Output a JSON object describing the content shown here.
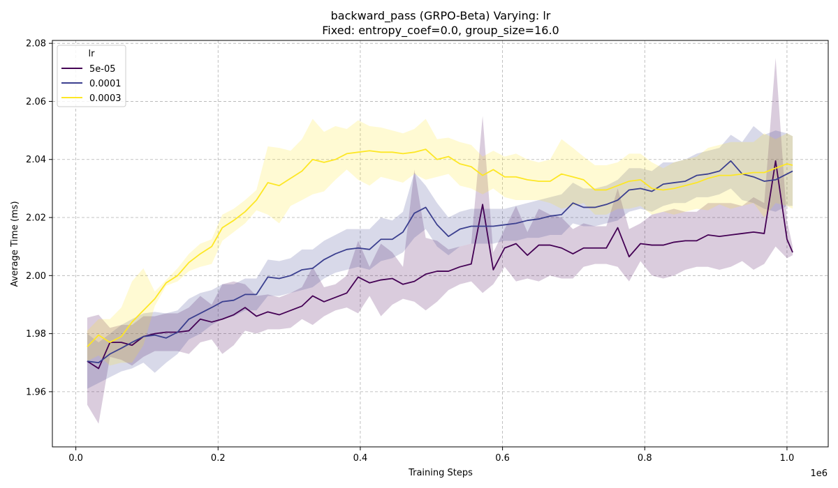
{
  "chart_data": {
    "type": "line",
    "title": "backward_pass (GRPO-Beta) Varying: lr",
    "subtitle": "Fixed: entropy_coef=0.0, group_size=16.0",
    "xlabel": "Training Steps",
    "ylabel": "Average Time (ms)",
    "x_offset_label": "1e6",
    "xlim": [
      -0.033,
      1.058
    ],
    "ylim": [
      1.941,
      2.081
    ],
    "xticks": [
      0.0,
      0.2,
      0.4,
      0.6,
      0.8,
      1.0
    ],
    "xtick_labels": [
      "0.0",
      "0.2",
      "0.4",
      "0.6",
      "0.8",
      "1.0"
    ],
    "yticks": [
      1.96,
      1.98,
      2.0,
      2.02,
      2.04,
      2.06,
      2.08
    ],
    "ytick_labels": [
      "1.96",
      "1.98",
      "2.00",
      "2.02",
      "2.04",
      "2.06",
      "2.08"
    ],
    "grid": true,
    "legend": {
      "title": "lr",
      "placement": "top-left"
    },
    "x": [
      0.016,
      0.032,
      0.048,
      0.064,
      0.079,
      0.095,
      0.111,
      0.127,
      0.143,
      0.159,
      0.175,
      0.191,
      0.206,
      0.222,
      0.238,
      0.254,
      0.27,
      0.286,
      0.302,
      0.318,
      0.333,
      0.349,
      0.365,
      0.381,
      0.397,
      0.413,
      0.429,
      0.445,
      0.46,
      0.476,
      0.492,
      0.508,
      0.524,
      0.54,
      0.556,
      0.572,
      0.587,
      0.603,
      0.619,
      0.635,
      0.651,
      0.667,
      0.683,
      0.699,
      0.714,
      0.73,
      0.746,
      0.762,
      0.778,
      0.794,
      0.81,
      0.826,
      0.841,
      0.857,
      0.873,
      0.889,
      0.905,
      0.921,
      0.937,
      0.953,
      0.968,
      0.984,
      1.0,
      1.008
    ],
    "series": [
      {
        "name": "5e-05",
        "color": "#440154",
        "values": [
          1.9705,
          1.968,
          1.977,
          1.977,
          1.976,
          1.979,
          1.98,
          1.9805,
          1.9805,
          1.981,
          1.985,
          1.984,
          1.985,
          1.9865,
          1.989,
          1.986,
          1.9875,
          1.9865,
          1.988,
          1.9895,
          1.993,
          1.991,
          1.9925,
          1.994,
          1.9995,
          1.9975,
          1.9985,
          1.999,
          1.997,
          1.998,
          2.0005,
          2.0015,
          2.0015,
          2.003,
          2.004,
          2.0245,
          2.002,
          2.0095,
          2.011,
          2.007,
          2.0105,
          2.0105,
          2.0095,
          2.0075,
          2.0095,
          2.0095,
          2.0095,
          2.0165,
          2.0065,
          2.011,
          2.0105,
          2.0105,
          2.0115,
          2.012,
          2.012,
          2.014,
          2.0135,
          2.014,
          2.0145,
          2.015,
          2.0145,
          2.0395,
          2.0125,
          2.008
        ],
        "lower": [
          1.9555,
          1.949,
          1.972,
          1.971,
          1.969,
          1.972,
          1.974,
          1.974,
          1.974,
          1.973,
          1.977,
          1.978,
          1.973,
          1.976,
          1.981,
          1.98,
          1.9815,
          1.9815,
          1.982,
          1.985,
          1.983,
          1.986,
          1.988,
          1.989,
          1.987,
          1.993,
          1.986,
          1.99,
          1.992,
          1.991,
          1.988,
          1.991,
          1.995,
          1.997,
          1.998,
          1.994,
          1.997,
          2.003,
          1.998,
          1.999,
          1.998,
          2.0,
          1.999,
          1.999,
          2.003,
          2.004,
          2.004,
          2.003,
          1.998,
          2.005,
          2.0,
          1.999,
          2.0,
          2.002,
          2.003,
          2.003,
          2.002,
          2.003,
          2.005,
          2.002,
          2.004,
          2.01,
          2.006,
          2.007
        ],
        "upper": [
          1.9855,
          1.9865,
          1.982,
          1.983,
          1.983,
          1.986,
          1.986,
          1.987,
          1.987,
          1.989,
          1.993,
          1.99,
          1.997,
          1.998,
          1.997,
          1.993,
          1.9935,
          1.9925,
          1.994,
          1.996,
          2.003,
          1.996,
          1.997,
          2.0,
          2.012,
          2.003,
          2.011,
          2.008,
          2.003,
          2.0365,
          2.013,
          2.012,
          2.009,
          2.01,
          2.011,
          2.055,
          2.008,
          2.016,
          2.024,
          2.015,
          2.023,
          2.021,
          2.02,
          2.016,
          2.018,
          2.017,
          2.017,
          2.03,
          2.016,
          2.018,
          2.021,
          2.022,
          2.023,
          2.022,
          2.022,
          2.025,
          2.025,
          2.025,
          2.024,
          2.027,
          2.025,
          2.075,
          2.019,
          2.01
        ]
      },
      {
        "name": "0.0001",
        "color": "#3b3f8f",
        "values": [
          1.9705,
          1.97,
          1.973,
          1.975,
          1.977,
          1.979,
          1.9795,
          1.9785,
          1.9805,
          1.985,
          1.987,
          1.989,
          1.991,
          1.9915,
          1.9935,
          1.9935,
          1.9995,
          1.999,
          2.0,
          2.002,
          2.0025,
          2.0055,
          2.0075,
          2.009,
          2.0095,
          2.009,
          2.0125,
          2.0125,
          2.015,
          2.0215,
          2.0235,
          2.0175,
          2.0135,
          2.016,
          2.017,
          2.017,
          2.017,
          2.0175,
          2.018,
          2.019,
          2.0195,
          2.0205,
          2.021,
          2.025,
          2.0235,
          2.0235,
          2.0245,
          2.026,
          2.0295,
          2.03,
          2.029,
          2.0315,
          2.032,
          2.0325,
          2.0345,
          2.035,
          2.036,
          2.0395,
          2.035,
          2.034,
          2.0325,
          2.033,
          2.035,
          2.036
        ],
        "lower": [
          1.961,
          1.963,
          1.965,
          1.967,
          1.968,
          1.97,
          1.9665,
          1.97,
          1.973,
          1.978,
          1.98,
          1.983,
          1.985,
          1.986,
          1.988,
          1.988,
          1.993,
          1.993,
          1.994,
          1.995,
          1.996,
          1.999,
          2.001,
          2.002,
          2.003,
          2.002,
          2.005,
          2.006,
          2.008,
          2.013,
          2.016,
          2.01,
          2.007,
          2.01,
          2.011,
          2.011,
          2.011,
          2.012,
          2.012,
          2.013,
          2.013,
          2.014,
          2.014,
          2.018,
          2.017,
          2.017,
          2.018,
          2.019,
          2.022,
          2.023,
          2.022,
          2.024,
          2.025,
          2.025,
          2.027,
          2.027,
          2.028,
          2.03,
          2.026,
          2.025,
          2.023,
          2.022,
          2.024,
          2.024
        ],
        "upper": [
          1.98,
          1.977,
          1.98,
          1.983,
          1.985,
          1.987,
          1.9875,
          1.987,
          1.988,
          1.992,
          1.994,
          1.995,
          1.997,
          1.997,
          1.999,
          1.999,
          2.0055,
          2.005,
          2.006,
          2.009,
          2.009,
          2.012,
          2.014,
          2.016,
          2.016,
          2.016,
          2.02,
          2.019,
          2.022,
          2.0355,
          2.031,
          2.025,
          2.02,
          2.022,
          2.023,
          2.023,
          2.023,
          2.023,
          2.024,
          2.025,
          2.026,
          2.027,
          2.028,
          2.032,
          2.03,
          2.03,
          2.031,
          2.033,
          2.037,
          2.037,
          2.036,
          2.039,
          2.039,
          2.04,
          2.042,
          2.043,
          2.044,
          2.0485,
          2.046,
          2.0515,
          2.0485,
          2.05,
          2.049,
          2.048
        ]
      },
      {
        "name": "0.0003",
        "color": "#fde725",
        "values": [
          1.9755,
          1.9795,
          1.977,
          1.979,
          1.984,
          1.988,
          1.992,
          1.9975,
          2.0,
          2.0045,
          2.0075,
          2.01,
          2.0165,
          2.019,
          2.022,
          2.026,
          2.032,
          2.031,
          2.0335,
          2.036,
          2.04,
          2.039,
          2.04,
          2.042,
          2.0425,
          2.043,
          2.0425,
          2.0425,
          2.042,
          2.0425,
          2.0435,
          2.04,
          2.041,
          2.0385,
          2.0375,
          2.0345,
          2.0365,
          2.034,
          2.034,
          2.033,
          2.0325,
          2.0325,
          2.035,
          2.034,
          2.033,
          2.0295,
          2.0295,
          2.031,
          2.0325,
          2.033,
          2.03,
          2.0295,
          2.03,
          2.031,
          2.032,
          2.0335,
          2.0345,
          2.0345,
          2.035,
          2.0355,
          2.0355,
          2.037,
          2.0385,
          2.038
        ],
        "lower": [
          1.9705,
          1.9725,
          1.969,
          1.97,
          1.97,
          1.976,
          1.9895,
          1.9965,
          1.998,
          2.0015,
          2.003,
          2.004,
          2.012,
          2.015,
          2.018,
          2.0225,
          2.021,
          2.018,
          2.024,
          2.026,
          2.028,
          2.029,
          2.033,
          2.0365,
          2.033,
          2.031,
          2.034,
          2.033,
          2.032,
          2.035,
          2.033,
          2.034,
          2.035,
          2.031,
          2.03,
          2.028,
          2.03,
          2.027,
          2.026,
          2.026,
          2.026,
          2.025,
          2.023,
          2.024,
          2.025,
          2.021,
          2.021,
          2.023,
          2.023,
          2.024,
          2.021,
          2.022,
          2.021,
          2.022,
          2.023,
          2.0225,
          2.0245,
          2.023,
          2.024,
          2.025,
          2.02,
          2.025,
          2.024,
          2.023
        ],
        "upper": [
          1.981,
          1.985,
          1.985,
          1.989,
          1.998,
          2.0025,
          1.9945,
          1.9985,
          2.0025,
          2.0075,
          2.011,
          2.0125,
          2.021,
          2.023,
          2.026,
          2.0295,
          2.0445,
          2.044,
          2.043,
          2.047,
          2.054,
          2.0495,
          2.0515,
          2.0505,
          2.0535,
          2.0515,
          2.051,
          2.05,
          2.049,
          2.0505,
          2.054,
          2.047,
          2.0475,
          2.046,
          2.045,
          2.041,
          2.043,
          2.041,
          2.042,
          2.04,
          2.039,
          2.04,
          2.047,
          2.044,
          2.041,
          2.038,
          2.038,
          2.039,
          2.042,
          2.042,
          2.039,
          2.037,
          2.039,
          2.04,
          2.041,
          2.044,
          2.045,
          2.046,
          2.046,
          2.046,
          2.049,
          2.047,
          2.049,
          2.048
        ]
      }
    ]
  }
}
